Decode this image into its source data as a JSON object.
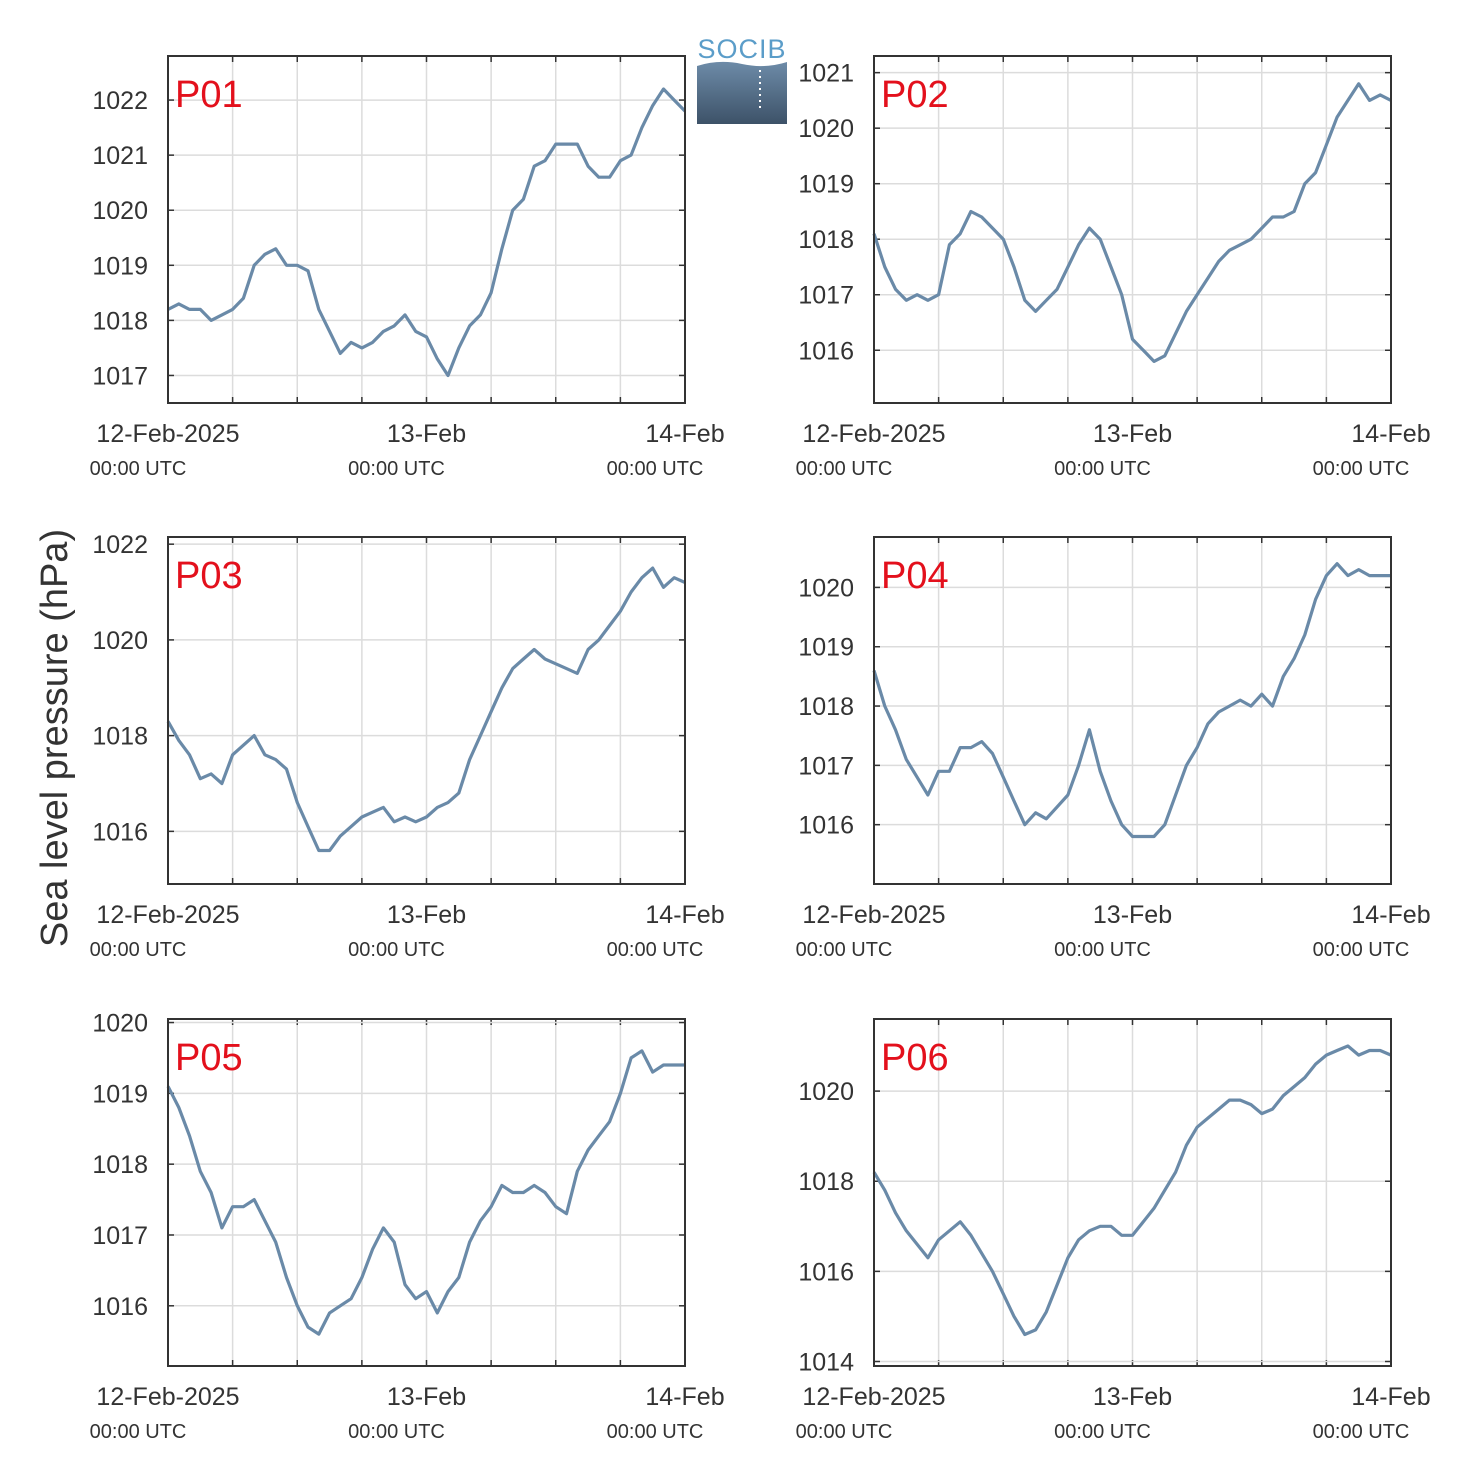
{
  "logo": {
    "text": "SOCIB",
    "color": "#5b9dc9"
  },
  "ylabel": "Sea level pressure (hPa)",
  "colors": {
    "line": "#6a8aa8",
    "label": "#e3101c",
    "grid": "#dcdcdc",
    "axis": "#333333"
  },
  "xticks": [
    {
      "t": 0,
      "main": "12-Feb-2025",
      "sub": "00:00 UTC"
    },
    {
      "t": 24,
      "main": "13-Feb",
      "sub": "00:00 UTC"
    },
    {
      "t": 48,
      "main": "14-Feb",
      "sub": "00:00 UTC"
    }
  ],
  "chart_data": [
    {
      "type": "line",
      "label": "P01",
      "xlim": [
        0,
        48
      ],
      "ylim": [
        1016.5,
        1022.8
      ],
      "yticks": [
        1017,
        1018,
        1019,
        1020,
        1021,
        1022
      ],
      "x": [
        0,
        1,
        2,
        3,
        4,
        5,
        6,
        7,
        8,
        9,
        10,
        11,
        12,
        13,
        14,
        15,
        16,
        17,
        18,
        19,
        20,
        21,
        22,
        23,
        24,
        25,
        26,
        27,
        28,
        29,
        30,
        31,
        32,
        33,
        34,
        35,
        36,
        37,
        38,
        39,
        40,
        41,
        42,
        43,
        44,
        45,
        46,
        47,
        48
      ],
      "y": [
        1018.2,
        1018.3,
        1018.2,
        1018.2,
        1018.0,
        1018.1,
        1018.2,
        1018.4,
        1019.0,
        1019.2,
        1019.3,
        1019.0,
        1019.0,
        1018.9,
        1018.2,
        1017.8,
        1017.4,
        1017.6,
        1017.5,
        1017.6,
        1017.8,
        1017.9,
        1018.1,
        1017.8,
        1017.7,
        1017.3,
        1017.0,
        1017.5,
        1017.9,
        1018.1,
        1018.5,
        1019.3,
        1020.0,
        1020.2,
        1020.8,
        1020.9,
        1021.2,
        1021.2,
        1021.2,
        1020.8,
        1020.6,
        1020.6,
        1020.9,
        1021.0,
        1021.5,
        1021.9,
        1022.2,
        1022.0,
        1021.8
      ]
    },
    {
      "type": "line",
      "label": "P02",
      "xlim": [
        0,
        48
      ],
      "ylim": [
        1015.05,
        1021.3
      ],
      "yticks": [
        1016,
        1017,
        1018,
        1019,
        1020,
        1021
      ],
      "x": [
        0,
        1,
        2,
        3,
        4,
        5,
        6,
        7,
        8,
        9,
        10,
        11,
        12,
        13,
        14,
        15,
        16,
        17,
        18,
        19,
        20,
        21,
        22,
        23,
        24,
        25,
        26,
        27,
        28,
        29,
        30,
        31,
        32,
        33,
        34,
        35,
        36,
        37,
        38,
        39,
        40,
        41,
        42,
        43,
        44,
        45,
        46,
        47,
        48
      ],
      "y": [
        1018.1,
        1017.5,
        1017.1,
        1016.9,
        1017.0,
        1016.9,
        1017.0,
        1017.9,
        1018.1,
        1018.5,
        1018.4,
        1018.2,
        1018.0,
        1017.5,
        1016.9,
        1016.7,
        1016.9,
        1017.1,
        1017.5,
        1017.9,
        1018.2,
        1018.0,
        1017.5,
        1017.0,
        1016.2,
        1016.0,
        1015.8,
        1015.9,
        1016.3,
        1016.7,
        1017.0,
        1017.3,
        1017.6,
        1017.8,
        1017.9,
        1018.0,
        1018.2,
        1018.4,
        1018.4,
        1018.5,
        1019.0,
        1019.2,
        1019.7,
        1020.2,
        1020.5,
        1020.8,
        1020.5,
        1020.6,
        1020.5
      ]
    },
    {
      "type": "line",
      "label": "P03",
      "xlim": [
        0,
        48
      ],
      "ylim": [
        1014.9,
        1022.15
      ],
      "yticks": [
        1016,
        1018,
        1020,
        1022
      ],
      "x": [
        0,
        1,
        2,
        3,
        4,
        5,
        6,
        7,
        8,
        9,
        10,
        11,
        12,
        13,
        14,
        15,
        16,
        17,
        18,
        19,
        20,
        21,
        22,
        23,
        24,
        25,
        26,
        27,
        28,
        29,
        30,
        31,
        32,
        33,
        34,
        35,
        36,
        37,
        38,
        39,
        40,
        41,
        42,
        43,
        44,
        45,
        46,
        47,
        48
      ],
      "y": [
        1018.3,
        1017.9,
        1017.6,
        1017.1,
        1017.2,
        1017.0,
        1017.6,
        1017.8,
        1018.0,
        1017.6,
        1017.5,
        1017.3,
        1016.6,
        1016.1,
        1015.6,
        1015.6,
        1015.9,
        1016.1,
        1016.3,
        1016.4,
        1016.5,
        1016.2,
        1016.3,
        1016.2,
        1016.3,
        1016.5,
        1016.6,
        1016.8,
        1017.5,
        1018.0,
        1018.5,
        1019.0,
        1019.4,
        1019.6,
        1019.8,
        1019.6,
        1019.5,
        1019.4,
        1019.3,
        1019.8,
        1020.0,
        1020.3,
        1020.6,
        1021.0,
        1021.3,
        1021.5,
        1021.1,
        1021.3,
        1021.2
      ]
    },
    {
      "type": "line",
      "label": "P04",
      "xlim": [
        0,
        48
      ],
      "ylim": [
        1015.0,
        1020.85
      ],
      "yticks": [
        1016,
        1017,
        1018,
        1019,
        1020
      ],
      "x": [
        0,
        1,
        2,
        3,
        4,
        5,
        6,
        7,
        8,
        9,
        10,
        11,
        12,
        13,
        14,
        15,
        16,
        17,
        18,
        19,
        20,
        21,
        22,
        23,
        24,
        25,
        26,
        27,
        28,
        29,
        30,
        31,
        32,
        33,
        34,
        35,
        36,
        37,
        38,
        39,
        40,
        41,
        42,
        43,
        44,
        45,
        46,
        47,
        48
      ],
      "y": [
        1018.6,
        1018.0,
        1017.6,
        1017.1,
        1016.8,
        1016.5,
        1016.9,
        1016.9,
        1017.3,
        1017.3,
        1017.4,
        1017.2,
        1016.8,
        1016.4,
        1016.0,
        1016.2,
        1016.1,
        1016.3,
        1016.5,
        1017.0,
        1017.6,
        1016.9,
        1016.4,
        1016.0,
        1015.8,
        1015.8,
        1015.8,
        1016.0,
        1016.5,
        1017.0,
        1017.3,
        1017.7,
        1017.9,
        1018.0,
        1018.1,
        1018.0,
        1018.2,
        1018.0,
        1018.5,
        1018.8,
        1019.2,
        1019.8,
        1020.2,
        1020.4,
        1020.2,
        1020.3,
        1020.2,
        1020.2,
        1020.2
      ]
    },
    {
      "type": "line",
      "label": "P05",
      "xlim": [
        0,
        48
      ],
      "ylim": [
        1015.15,
        1020.05
      ],
      "yticks": [
        1016,
        1017,
        1018,
        1019,
        1020
      ],
      "x": [
        0,
        1,
        2,
        3,
        4,
        5,
        6,
        7,
        8,
        9,
        10,
        11,
        12,
        13,
        14,
        15,
        16,
        17,
        18,
        19,
        20,
        21,
        22,
        23,
        24,
        25,
        26,
        27,
        28,
        29,
        30,
        31,
        32,
        33,
        34,
        35,
        36,
        37,
        38,
        39,
        40,
        41,
        42,
        43,
        44,
        45,
        46,
        47,
        48
      ],
      "y": [
        1019.1,
        1018.8,
        1018.4,
        1017.9,
        1017.6,
        1017.1,
        1017.4,
        1017.4,
        1017.5,
        1017.2,
        1016.9,
        1016.4,
        1016.0,
        1015.7,
        1015.6,
        1015.9,
        1016.0,
        1016.1,
        1016.4,
        1016.8,
        1017.1,
        1016.9,
        1016.3,
        1016.1,
        1016.2,
        1015.9,
        1016.2,
        1016.4,
        1016.9,
        1017.2,
        1017.4,
        1017.7,
        1017.6,
        1017.6,
        1017.7,
        1017.6,
        1017.4,
        1017.3,
        1017.9,
        1018.2,
        1018.4,
        1018.6,
        1019.0,
        1019.5,
        1019.6,
        1019.3,
        1019.4,
        1019.4,
        1019.4
      ]
    },
    {
      "type": "line",
      "label": "P06",
      "xlim": [
        0,
        48
      ],
      "ylim": [
        1013.9,
        1021.6
      ],
      "yticks": [
        1014,
        1016,
        1018,
        1020
      ],
      "x": [
        0,
        1,
        2,
        3,
        4,
        5,
        6,
        7,
        8,
        9,
        10,
        11,
        12,
        13,
        14,
        15,
        16,
        17,
        18,
        19,
        20,
        21,
        22,
        23,
        24,
        25,
        26,
        27,
        28,
        29,
        30,
        31,
        32,
        33,
        34,
        35,
        36,
        37,
        38,
        39,
        40,
        41,
        42,
        43,
        44,
        45,
        46,
        47,
        48
      ],
      "y": [
        1018.2,
        1017.8,
        1017.3,
        1016.9,
        1016.6,
        1016.3,
        1016.7,
        1016.9,
        1017.1,
        1016.8,
        1016.4,
        1016.0,
        1015.5,
        1015.0,
        1014.6,
        1014.7,
        1015.1,
        1015.7,
        1016.3,
        1016.7,
        1016.9,
        1017.0,
        1017.0,
        1016.8,
        1016.8,
        1017.1,
        1017.4,
        1017.8,
        1018.2,
        1018.8,
        1019.2,
        1019.4,
        1019.6,
        1019.8,
        1019.8,
        1019.7,
        1019.5,
        1019.6,
        1019.9,
        1020.1,
        1020.3,
        1020.6,
        1020.8,
        1020.9,
        1021.0,
        1020.8,
        1020.9,
        1020.9,
        1020.8
      ]
    }
  ]
}
